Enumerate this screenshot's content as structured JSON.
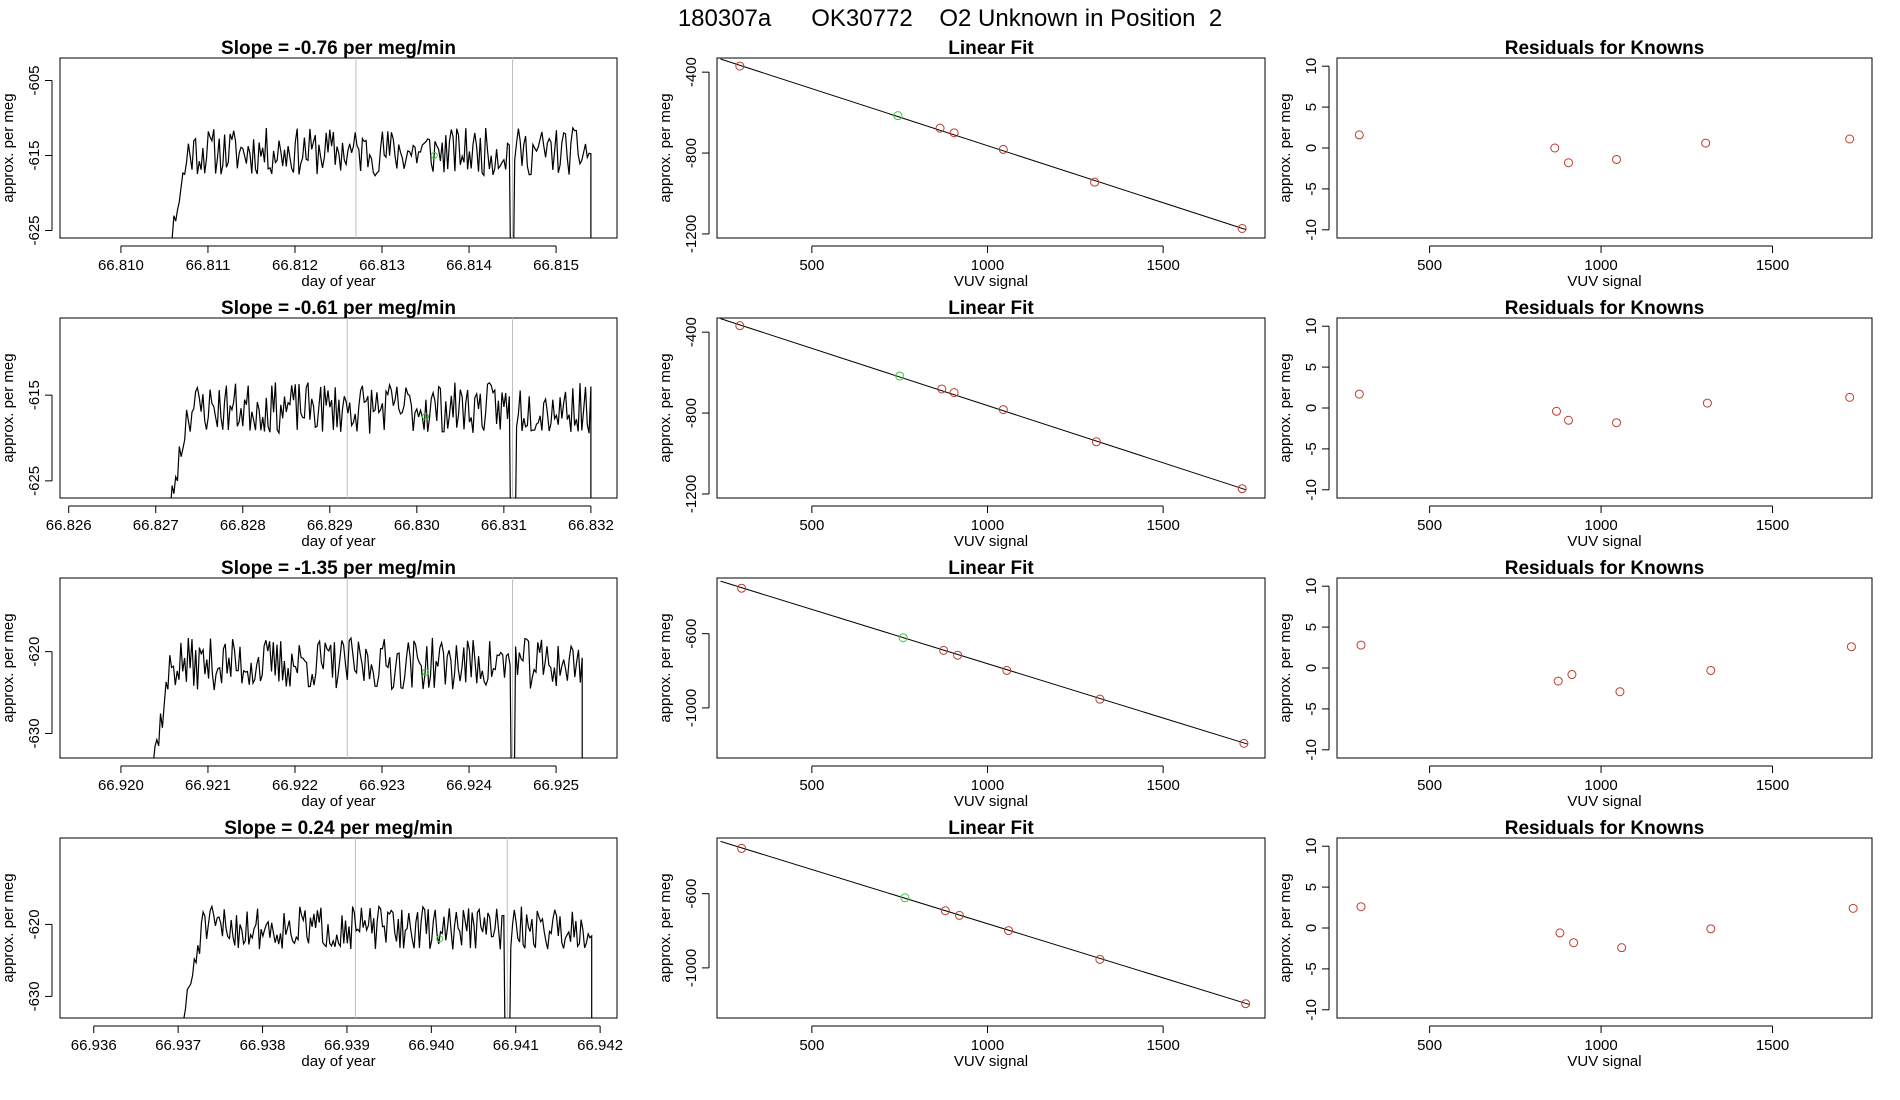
{
  "figure_title": "180307a      OK30772    O2 Unknown in Position  2",
  "colors": {
    "line": "#000000",
    "known_point": "#c0392b",
    "unknown_point": "#33cc33",
    "vline": "#bdbdbd",
    "frame": "#000000"
  },
  "chart_data": [
    {
      "type": "line",
      "panel": "time-series",
      "row": 1,
      "title": "Slope =  -0.76  per meg/min",
      "xlabel": "day of year",
      "ylabel": "approx. per meg",
      "xlim": [
        66.8093,
        66.8157
      ],
      "ylim": [
        -626,
        -602
      ],
      "xticks": [
        66.81,
        66.811,
        66.812,
        66.813,
        66.814,
        66.815
      ],
      "xtick_labels": [
        "66.810",
        "66.811",
        "66.812",
        "66.813",
        "66.814",
        "66.815"
      ],
      "yticks": [
        -605,
        -615,
        -625
      ],
      "ytick_labels": [
        "-605",
        "-615",
        "-625"
      ],
      "x_start": 66.8104,
      "x_end": 66.8154,
      "level": -614.5,
      "noise": 3.2,
      "seed": 11,
      "vlines": [
        66.8127,
        66.8145
      ],
      "unknown_point": {
        "x": 66.8136,
        "y": -615
      }
    },
    {
      "type": "scatter",
      "panel": "linear-fit",
      "row": 1,
      "title": "Linear Fit",
      "xlabel": "VUV signal",
      "ylabel": "approx. per meg",
      "xlim": [
        230,
        1790
      ],
      "ylim": [
        -1220,
        -330
      ],
      "xticks": [
        500,
        1000,
        1500
      ],
      "xtick_labels": [
        "500",
        "1000",
        "1500"
      ],
      "yticks": [
        -400,
        -800,
        -1200
      ],
      "ytick_labels": [
        "-400",
        "-800",
        "-1200"
      ],
      "known_points": [
        [
          295,
          -370
        ],
        [
          865,
          -677
        ],
        [
          905,
          -700
        ],
        [
          1045,
          -782
        ],
        [
          1305,
          -944
        ],
        [
          1725,
          -1173
        ]
      ],
      "unknown_point": [
        745,
        -615
      ],
      "fit_line": [
        [
          240,
          -335
        ],
        [
          1735,
          -1178
        ]
      ]
    },
    {
      "type": "scatter",
      "panel": "residuals",
      "row": 1,
      "title": "Residuals for Knowns",
      "xlabel": "VUV signal",
      "ylabel": "approx. per meg",
      "xlim": [
        230,
        1790
      ],
      "ylim": [
        -11,
        11
      ],
      "xticks": [
        500,
        1000,
        1500
      ],
      "xtick_labels": [
        "500",
        "1000",
        "1500"
      ],
      "yticks": [
        10,
        5,
        0,
        -5,
        -10
      ],
      "ytick_labels": [
        "10",
        "5",
        "0",
        "-5",
        "-10"
      ],
      "points": [
        [
          295,
          1.6
        ],
        [
          865,
          0.0
        ],
        [
          905,
          -1.8
        ],
        [
          1045,
          -1.4
        ],
        [
          1305,
          0.6
        ],
        [
          1725,
          1.1
        ]
      ]
    },
    {
      "type": "line",
      "panel": "time-series",
      "row": 2,
      "title": "Slope =  -0.61  per meg/min",
      "xlabel": "day of year",
      "ylabel": "approx. per meg",
      "xlim": [
        66.8259,
        66.8323
      ],
      "ylim": [
        -627,
        -606
      ],
      "xticks": [
        66.826,
        66.827,
        66.828,
        66.829,
        66.83,
        66.831,
        66.832
      ],
      "xtick_labels": [
        "66.826",
        "66.827",
        "66.828",
        "66.829",
        "66.830",
        "66.831",
        "66.832"
      ],
      "yticks": [
        -615,
        -625
      ],
      "ytick_labels": [
        "-615",
        "-625"
      ],
      "x_start": 66.827,
      "x_end": 66.832,
      "level": -616.5,
      "noise": 3.0,
      "seed": 23,
      "vlines": [
        66.8292,
        66.8311
      ],
      "unknown_point": {
        "x": 66.8301,
        "y": -617.5
      }
    },
    {
      "type": "scatter",
      "panel": "linear-fit",
      "row": 2,
      "title": "Linear Fit",
      "xlabel": "VUV signal",
      "ylabel": "approx. per meg",
      "xlim": [
        230,
        1790
      ],
      "ylim": [
        -1220,
        -330
      ],
      "xticks": [
        500,
        1000,
        1500
      ],
      "xtick_labels": [
        "500",
        "1000",
        "1500"
      ],
      "yticks": [
        -400,
        -800,
        -1200
      ],
      "ytick_labels": [
        "-400",
        "-800",
        "-1200"
      ],
      "known_points": [
        [
          295,
          -368
        ],
        [
          870,
          -681
        ],
        [
          905,
          -699
        ],
        [
          1045,
          -783
        ],
        [
          1310,
          -942
        ],
        [
          1725,
          -1174
        ]
      ],
      "unknown_point": [
        750,
        -617
      ],
      "fit_line": [
        [
          240,
          -333
        ],
        [
          1735,
          -1179
        ]
      ]
    },
    {
      "type": "scatter",
      "panel": "residuals",
      "row": 2,
      "title": "Residuals for Knowns",
      "xlabel": "VUV signal",
      "ylabel": "approx. per meg",
      "xlim": [
        230,
        1790
      ],
      "ylim": [
        -11,
        11
      ],
      "xticks": [
        500,
        1000,
        1500
      ],
      "xtick_labels": [
        "500",
        "1000",
        "1500"
      ],
      "yticks": [
        10,
        5,
        0,
        -5,
        -10
      ],
      "ytick_labels": [
        "10",
        "5",
        "0",
        "-5",
        "-10"
      ],
      "points": [
        [
          295,
          1.7
        ],
        [
          870,
          -0.4
        ],
        [
          905,
          -1.5
        ],
        [
          1045,
          -1.8
        ],
        [
          1310,
          0.6
        ],
        [
          1725,
          1.3
        ]
      ]
    },
    {
      "type": "line",
      "panel": "time-series",
      "row": 3,
      "title": "Slope =  -1.35  per meg/min",
      "xlabel": "day of year",
      "ylabel": "approx. per meg",
      "xlim": [
        66.9193,
        66.9257
      ],
      "ylim": [
        -633,
        -611
      ],
      "xticks": [
        66.92,
        66.921,
        66.922,
        66.923,
        66.924,
        66.925
      ],
      "xtick_labels": [
        "66.920",
        "66.921",
        "66.922",
        "66.923",
        "66.924",
        "66.925"
      ],
      "yticks": [
        -620,
        -630
      ],
      "ytick_labels": [
        "-620",
        "-630"
      ],
      "x_start": 66.9202,
      "x_end": 66.9253,
      "level": -621.5,
      "noise": 3.2,
      "seed": 37,
      "vlines": [
        66.9226,
        66.9245
      ],
      "unknown_point": {
        "x": 66.9235,
        "y": -622.5
      }
    },
    {
      "type": "scatter",
      "panel": "linear-fit",
      "row": 3,
      "title": "Linear Fit",
      "xlabel": "VUV signal",
      "ylabel": "approx. per meg",
      "xlim": [
        230,
        1790
      ],
      "ylim": [
        -1270,
        -300
      ],
      "xticks": [
        500,
        1000,
        1500
      ],
      "xtick_labels": [
        "500",
        "1000",
        "1500"
      ],
      "yticks": [
        -600,
        -1000
      ],
      "ytick_labels": [
        "-600",
        "-1000"
      ],
      "known_points": [
        [
          300,
          -355
        ],
        [
          875,
          -690
        ],
        [
          915,
          -716
        ],
        [
          1055,
          -798
        ],
        [
          1320,
          -953
        ],
        [
          1730,
          -1191
        ]
      ],
      "unknown_point": [
        760,
        -622
      ],
      "fit_line": [
        [
          240,
          -317
        ],
        [
          1740,
          -1195
        ]
      ]
    },
    {
      "type": "scatter",
      "panel": "residuals",
      "row": 3,
      "title": "Residuals for Knowns",
      "xlabel": "VUV signal",
      "ylabel": "approx. per meg",
      "xlim": [
        230,
        1790
      ],
      "ylim": [
        -11,
        11
      ],
      "xticks": [
        500,
        1000,
        1500
      ],
      "xtick_labels": [
        "500",
        "1000",
        "1500"
      ],
      "yticks": [
        10,
        5,
        0,
        -5,
        -10
      ],
      "ytick_labels": [
        "10",
        "5",
        "0",
        "-5",
        "-10"
      ],
      "points": [
        [
          300,
          2.8
        ],
        [
          875,
          -1.6
        ],
        [
          915,
          -0.8
        ],
        [
          1055,
          -2.9
        ],
        [
          1320,
          -0.3
        ],
        [
          1730,
          2.6
        ]
      ]
    },
    {
      "type": "line",
      "panel": "time-series",
      "row": 4,
      "title": "Slope =  0.24  per meg/min",
      "xlabel": "day of year",
      "ylabel": "approx. per meg",
      "xlim": [
        66.9356,
        66.9422
      ],
      "ylim": [
        -633,
        -608
      ],
      "xticks": [
        66.936,
        66.937,
        66.938,
        66.939,
        66.94,
        66.941,
        66.942
      ],
      "xtick_labels": [
        "66.936",
        "66.937",
        "66.938",
        "66.939",
        "66.940",
        "66.941",
        "66.942"
      ],
      "yticks": [
        -620,
        -630
      ],
      "ytick_labels": [
        "-620",
        "-630"
      ],
      "x_start": 66.9369,
      "x_end": 66.9419,
      "level": -620.5,
      "noise": 3.0,
      "seed": 51,
      "vlines": [
        66.9391,
        66.9409
      ],
      "unknown_point": {
        "x": 66.9401,
        "y": -622
      }
    },
    {
      "type": "scatter",
      "panel": "linear-fit",
      "row": 4,
      "title": "Linear Fit",
      "xlabel": "VUV signal",
      "ylabel": "approx. per meg",
      "xlim": [
        230,
        1790
      ],
      "ylim": [
        -1270,
        -300
      ],
      "xticks": [
        500,
        1000,
        1500
      ],
      "xtick_labels": [
        "500",
        "1000",
        "1500"
      ],
      "yticks": [
        -600,
        -1000
      ],
      "ytick_labels": [
        "-600",
        "-1000"
      ],
      "known_points": [
        [
          300,
          -356
        ],
        [
          880,
          -692
        ],
        [
          920,
          -717
        ],
        [
          1060,
          -799
        ],
        [
          1320,
          -954
        ],
        [
          1735,
          -1193
        ]
      ],
      "unknown_point": [
        765,
        -622
      ],
      "fit_line": [
        [
          240,
          -318
        ],
        [
          1745,
          -1197
        ]
      ]
    },
    {
      "type": "scatter",
      "panel": "residuals",
      "row": 4,
      "title": "Residuals for Knowns",
      "xlabel": "VUV signal",
      "ylabel": "approx. per meg",
      "xlim": [
        230,
        1790
      ],
      "ylim": [
        -11,
        11
      ],
      "xticks": [
        500,
        1000,
        1500
      ],
      "xtick_labels": [
        "500",
        "1000",
        "1500"
      ],
      "yticks": [
        10,
        5,
        0,
        -5,
        -10
      ],
      "ytick_labels": [
        "10",
        "5",
        "0",
        "-5",
        "-10"
      ],
      "points": [
        [
          300,
          2.6
        ],
        [
          880,
          -0.6
        ],
        [
          920,
          -1.8
        ],
        [
          1060,
          -2.4
        ],
        [
          1320,
          -0.1
        ],
        [
          1735,
          2.4
        ]
      ]
    }
  ]
}
